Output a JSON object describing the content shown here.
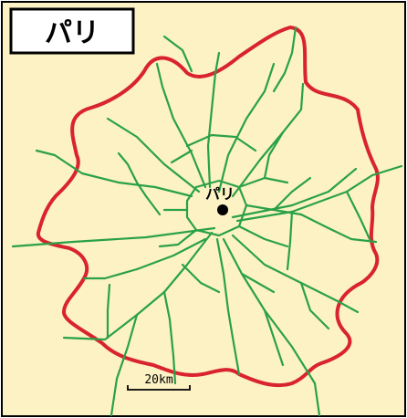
{
  "title": "パリ",
  "city_label": "パリ",
  "scale_label": "20km",
  "colors": {
    "background": "#FCF2C4",
    "boundary": "#D9232D",
    "rail": "#2AA146",
    "marker": "#000000",
    "frame": "#000000"
  },
  "icons": {
    "city_marker": "city-dot-icon"
  }
}
